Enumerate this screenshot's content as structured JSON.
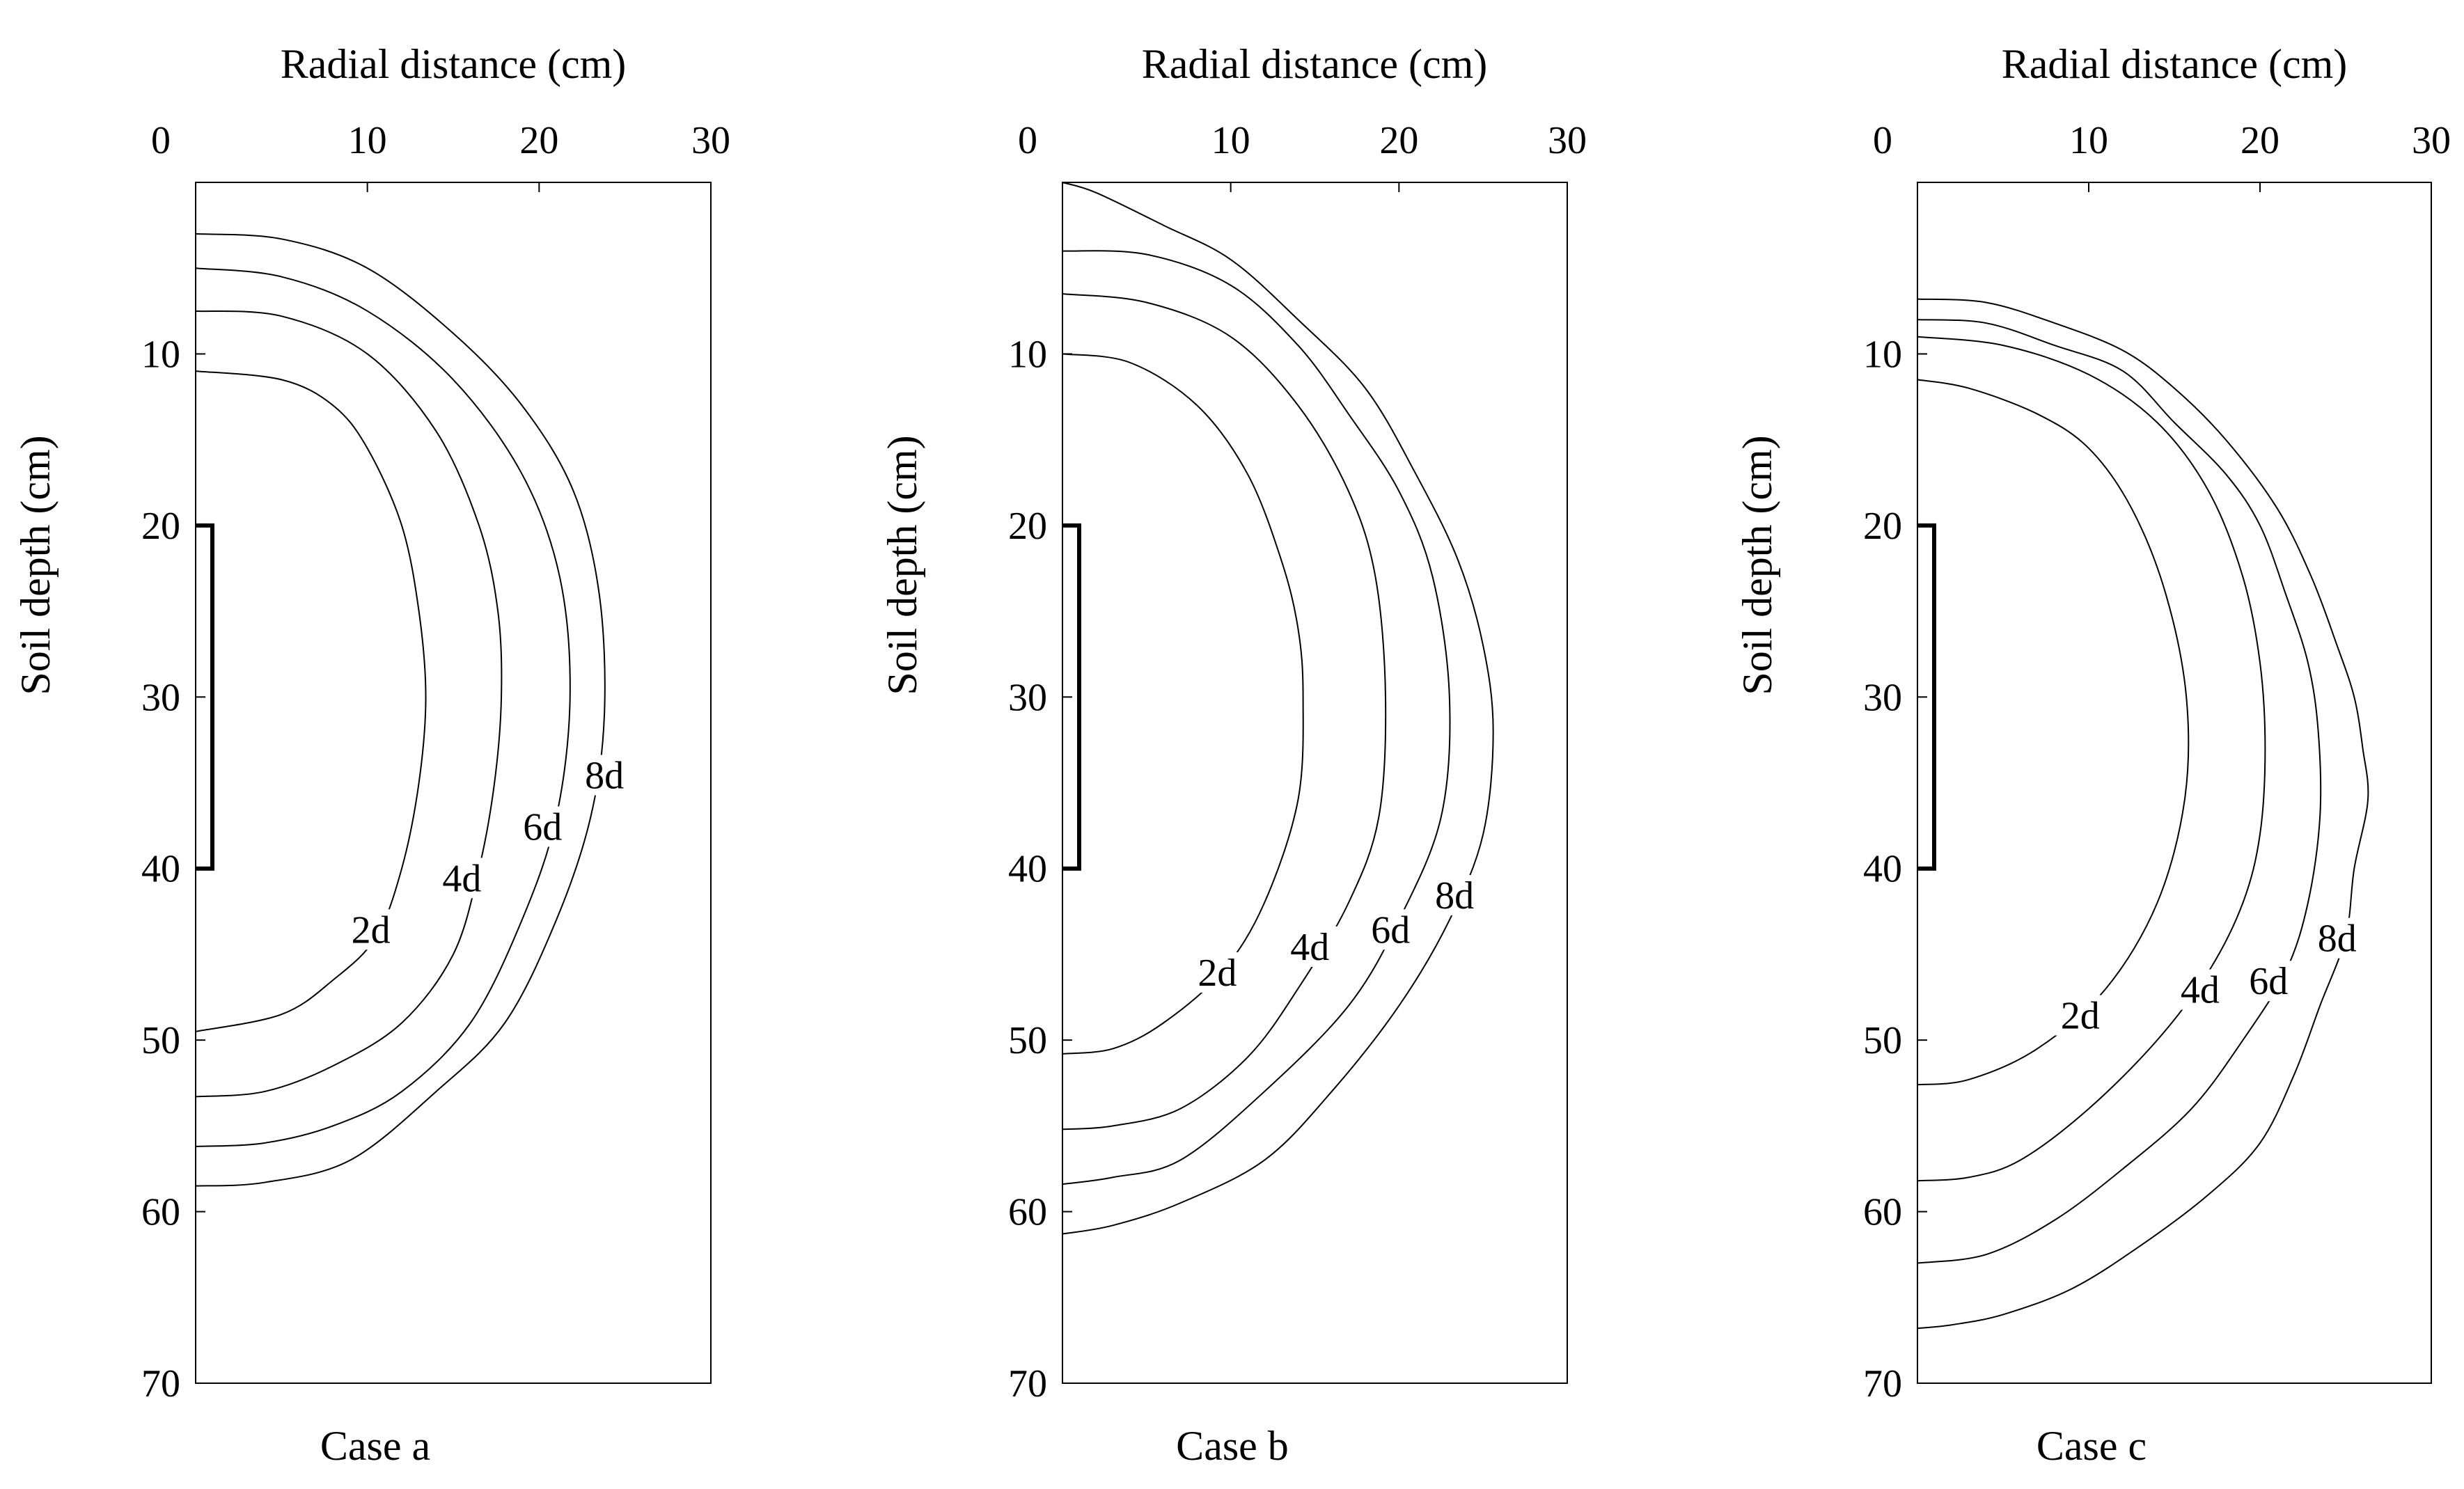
{
  "chart_data": [
    {
      "type": "line",
      "caption": "Case a",
      "xlabel": "Radial distance (cm)",
      "ylabel": "Soil depth (cm)",
      "xlim": [
        0,
        30
      ],
      "ylim": [
        70,
        0
      ],
      "x_axis_position": "top",
      "xticks": [
        "0",
        "10",
        "20",
        "30"
      ],
      "yticks": [
        "10",
        "20",
        "30",
        "40",
        "50",
        "60",
        "70"
      ],
      "emitter_segment": {
        "depth_from": 20,
        "depth_to": 40
      },
      "series": [
        {
          "name": "2d",
          "label_at": {
            "x": 10.2,
            "y": 44
          },
          "points": [
            [
              0,
              11
            ],
            [
              5,
              11.5
            ],
            [
              8,
              13
            ],
            [
              10,
              15.5
            ],
            [
              12,
              20
            ],
            [
              13,
              25
            ],
            [
              13.4,
              30
            ],
            [
              13,
              35
            ],
            [
              12,
              40
            ],
            [
              10.5,
              44
            ],
            [
              8,
              46.5
            ],
            [
              5,
              48.5
            ],
            [
              0,
              49.5
            ]
          ]
        },
        {
          "name": "4d",
          "label_at": {
            "x": 15.5,
            "y": 41
          },
          "points": [
            [
              0,
              7.5
            ],
            [
              5,
              7.8
            ],
            [
              10,
              10
            ],
            [
              14,
              14.5
            ],
            [
              16.5,
              20
            ],
            [
              17.6,
              25
            ],
            [
              17.8,
              30
            ],
            [
              17.4,
              35
            ],
            [
              16.5,
              40
            ],
            [
              15,
              45
            ],
            [
              12,
              49
            ],
            [
              8,
              51.5
            ],
            [
              4,
              53
            ],
            [
              0,
              53.3
            ]
          ]
        },
        {
          "name": "6d",
          "label_at": {
            "x": 20.2,
            "y": 38
          },
          "points": [
            [
              0,
              5
            ],
            [
              5,
              5.5
            ],
            [
              10,
              7.5
            ],
            [
              15,
              11.5
            ],
            [
              19,
              17
            ],
            [
              21.2,
              23
            ],
            [
              21.8,
              30
            ],
            [
              21,
              37
            ],
            [
              19,
              43
            ],
            [
              16,
              49
            ],
            [
              12,
              53
            ],
            [
              8,
              55
            ],
            [
              4,
              56
            ],
            [
              0,
              56.2
            ]
          ]
        },
        {
          "name": "8d",
          "label_at": {
            "x": 23.8,
            "y": 35
          },
          "points": [
            [
              0,
              3
            ],
            [
              5,
              3.3
            ],
            [
              10,
              5
            ],
            [
              15,
              8.8
            ],
            [
              19,
              13
            ],
            [
              22,
              18
            ],
            [
              23.5,
              24
            ],
            [
              23.8,
              31
            ],
            [
              23,
              37
            ],
            [
              21,
              43
            ],
            [
              18,
              49
            ],
            [
              14,
              53
            ],
            [
              9,
              57
            ],
            [
              4,
              58.3
            ],
            [
              0,
              58.5
            ]
          ]
        }
      ]
    },
    {
      "type": "line",
      "caption": "Case b",
      "xlabel": "Radial distance (cm)",
      "ylabel": "Soil depth (cm)",
      "xlim": [
        0,
        30
      ],
      "ylim": [
        70,
        0
      ],
      "x_axis_position": "top",
      "xticks": [
        "0",
        "10",
        "20",
        "30"
      ],
      "yticks": [
        "10",
        "20",
        "30",
        "40",
        "50",
        "60",
        "70"
      ],
      "emitter_segment": {
        "depth_from": 20,
        "depth_to": 40
      },
      "series": [
        {
          "name": "2d",
          "label_at": {
            "x": 9.2,
            "y": 46.5
          },
          "points": [
            [
              0,
              10
            ],
            [
              4,
              10.5
            ],
            [
              8,
              13
            ],
            [
              11,
              17
            ],
            [
              13,
              22
            ],
            [
              14,
              26
            ],
            [
              14.3,
              30
            ],
            [
              14,
              36
            ],
            [
              12,
              42
            ],
            [
              9.5,
              46
            ],
            [
              6,
              49
            ],
            [
              3,
              50.5
            ],
            [
              0,
              50.8
            ]
          ]
        },
        {
          "name": "4d",
          "label_at": {
            "x": 14.7,
            "y": 45
          },
          "points": [
            [
              0,
              6.5
            ],
            [
              5,
              7
            ],
            [
              10,
              9
            ],
            [
              14,
              13
            ],
            [
              17,
              18
            ],
            [
              18.6,
              23
            ],
            [
              19.2,
              30
            ],
            [
              18.8,
              37
            ],
            [
              17,
              42
            ],
            [
              14,
              47
            ],
            [
              11,
              51
            ],
            [
              7,
              54
            ],
            [
              3,
              55
            ],
            [
              0,
              55.2
            ]
          ]
        },
        {
          "name": "6d",
          "label_at": {
            "x": 19.5,
            "y": 44
          },
          "points": [
            [
              0,
              4
            ],
            [
              5,
              4.2
            ],
            [
              10,
              6
            ],
            [
              14,
              9.5
            ],
            [
              17,
              13.5
            ],
            [
              20,
              18
            ],
            [
              22,
              23
            ],
            [
              23,
              30
            ],
            [
              22.5,
              37
            ],
            [
              20,
              43
            ],
            [
              17,
              48
            ],
            [
              12,
              53
            ],
            [
              7,
              57
            ],
            [
              3,
              58
            ],
            [
              0,
              58.4
            ]
          ]
        },
        {
          "name": "8d",
          "label_at": {
            "x": 23.3,
            "y": 42
          },
          "points": [
            [
              0,
              0
            ],
            [
              2,
              0.6
            ],
            [
              6,
              2.5
            ],
            [
              10,
              4.5
            ],
            [
              14,
              8
            ],
            [
              18,
              12
            ],
            [
              21,
              17
            ],
            [
              23.5,
              22
            ],
            [
              25,
              27
            ],
            [
              25.6,
              32
            ],
            [
              25,
              38
            ],
            [
              23,
              43
            ],
            [
              20,
              48
            ],
            [
              16,
              53
            ],
            [
              12,
              57
            ],
            [
              7,
              59.5
            ],
            [
              3,
              60.8
            ],
            [
              0,
              61.3
            ]
          ]
        }
      ]
    },
    {
      "type": "line",
      "caption": "Case c",
      "xlabel": "Radial distance (cm)",
      "ylabel": "Soil depth (cm)",
      "xlim": [
        0,
        30
      ],
      "ylim": [
        70,
        0
      ],
      "x_axis_position": "top",
      "xticks": [
        "0",
        "10",
        "20",
        "30"
      ],
      "yticks": [
        "10",
        "20",
        "30",
        "40",
        "50",
        "60",
        "70"
      ],
      "emitter_segment": {
        "depth_from": 20,
        "depth_to": 40
      },
      "series": [
        {
          "name": "2d",
          "label_at": {
            "x": 9.5,
            "y": 49
          },
          "points": [
            [
              0,
              11.5
            ],
            [
              3,
              12
            ],
            [
              7,
              13.5
            ],
            [
              10,
              15.5
            ],
            [
              12.5,
              19
            ],
            [
              14.5,
              24
            ],
            [
              15.7,
              30
            ],
            [
              15.6,
              36
            ],
            [
              14,
              42
            ],
            [
              11,
              47
            ],
            [
              7,
              50.5
            ],
            [
              3,
              52.3
            ],
            [
              0,
              52.6
            ]
          ]
        },
        {
          "name": "4d",
          "label_at": {
            "x": 16.5,
            "y": 47.5
          },
          "points": [
            [
              0,
              9
            ],
            [
              5,
              9.5
            ],
            [
              10,
              11.2
            ],
            [
              14,
              14
            ],
            [
              17,
              18
            ],
            [
              19,
              23
            ],
            [
              20,
              28
            ],
            [
              20.3,
              33
            ],
            [
              20,
              38
            ],
            [
              19,
              42
            ],
            [
              17,
              46
            ],
            [
              14,
              50
            ],
            [
              10,
              54
            ],
            [
              6,
              57
            ],
            [
              3,
              58
            ],
            [
              0,
              58.2
            ]
          ]
        },
        {
          "name": "6d",
          "label_at": {
            "x": 20.5,
            "y": 47
          },
          "points": [
            [
              0,
              8
            ],
            [
              4,
              8.2
            ],
            [
              8,
              9.5
            ],
            [
              12,
              11
            ],
            [
              15,
              14
            ],
            [
              18,
              17
            ],
            [
              20,
              20
            ],
            [
              21.5,
              24
            ],
            [
              22.8,
              28
            ],
            [
              23.4,
              32
            ],
            [
              23.5,
              37
            ],
            [
              22.8,
              42
            ],
            [
              21.5,
              46
            ],
            [
              19,
              50
            ],
            [
              16,
              54
            ],
            [
              12,
              57.5
            ],
            [
              8,
              60.5
            ],
            [
              4,
              62.5
            ],
            [
              0,
              63
            ]
          ]
        },
        {
          "name": "8d",
          "label_at": {
            "x": 24.5,
            "y": 44.5
          },
          "points": [
            [
              0,
              6.8
            ],
            [
              4,
              7
            ],
            [
              8,
              8.2
            ],
            [
              12,
              9.8
            ],
            [
              15,
              12
            ],
            [
              18,
              15
            ],
            [
              21,
              19
            ],
            [
              23,
              23
            ],
            [
              24.5,
              27
            ],
            [
              25.5,
              30
            ],
            [
              26,
              33
            ],
            [
              26.3,
              36
            ],
            [
              25.5,
              40
            ],
            [
              25,
              44
            ],
            [
              23.5,
              48
            ],
            [
              22,
              52
            ],
            [
              20,
              56
            ],
            [
              17,
              59
            ],
            [
              13,
              62
            ],
            [
              9,
              64.5
            ],
            [
              5,
              66
            ],
            [
              2,
              66.6
            ],
            [
              0,
              66.8
            ]
          ]
        }
      ]
    }
  ]
}
